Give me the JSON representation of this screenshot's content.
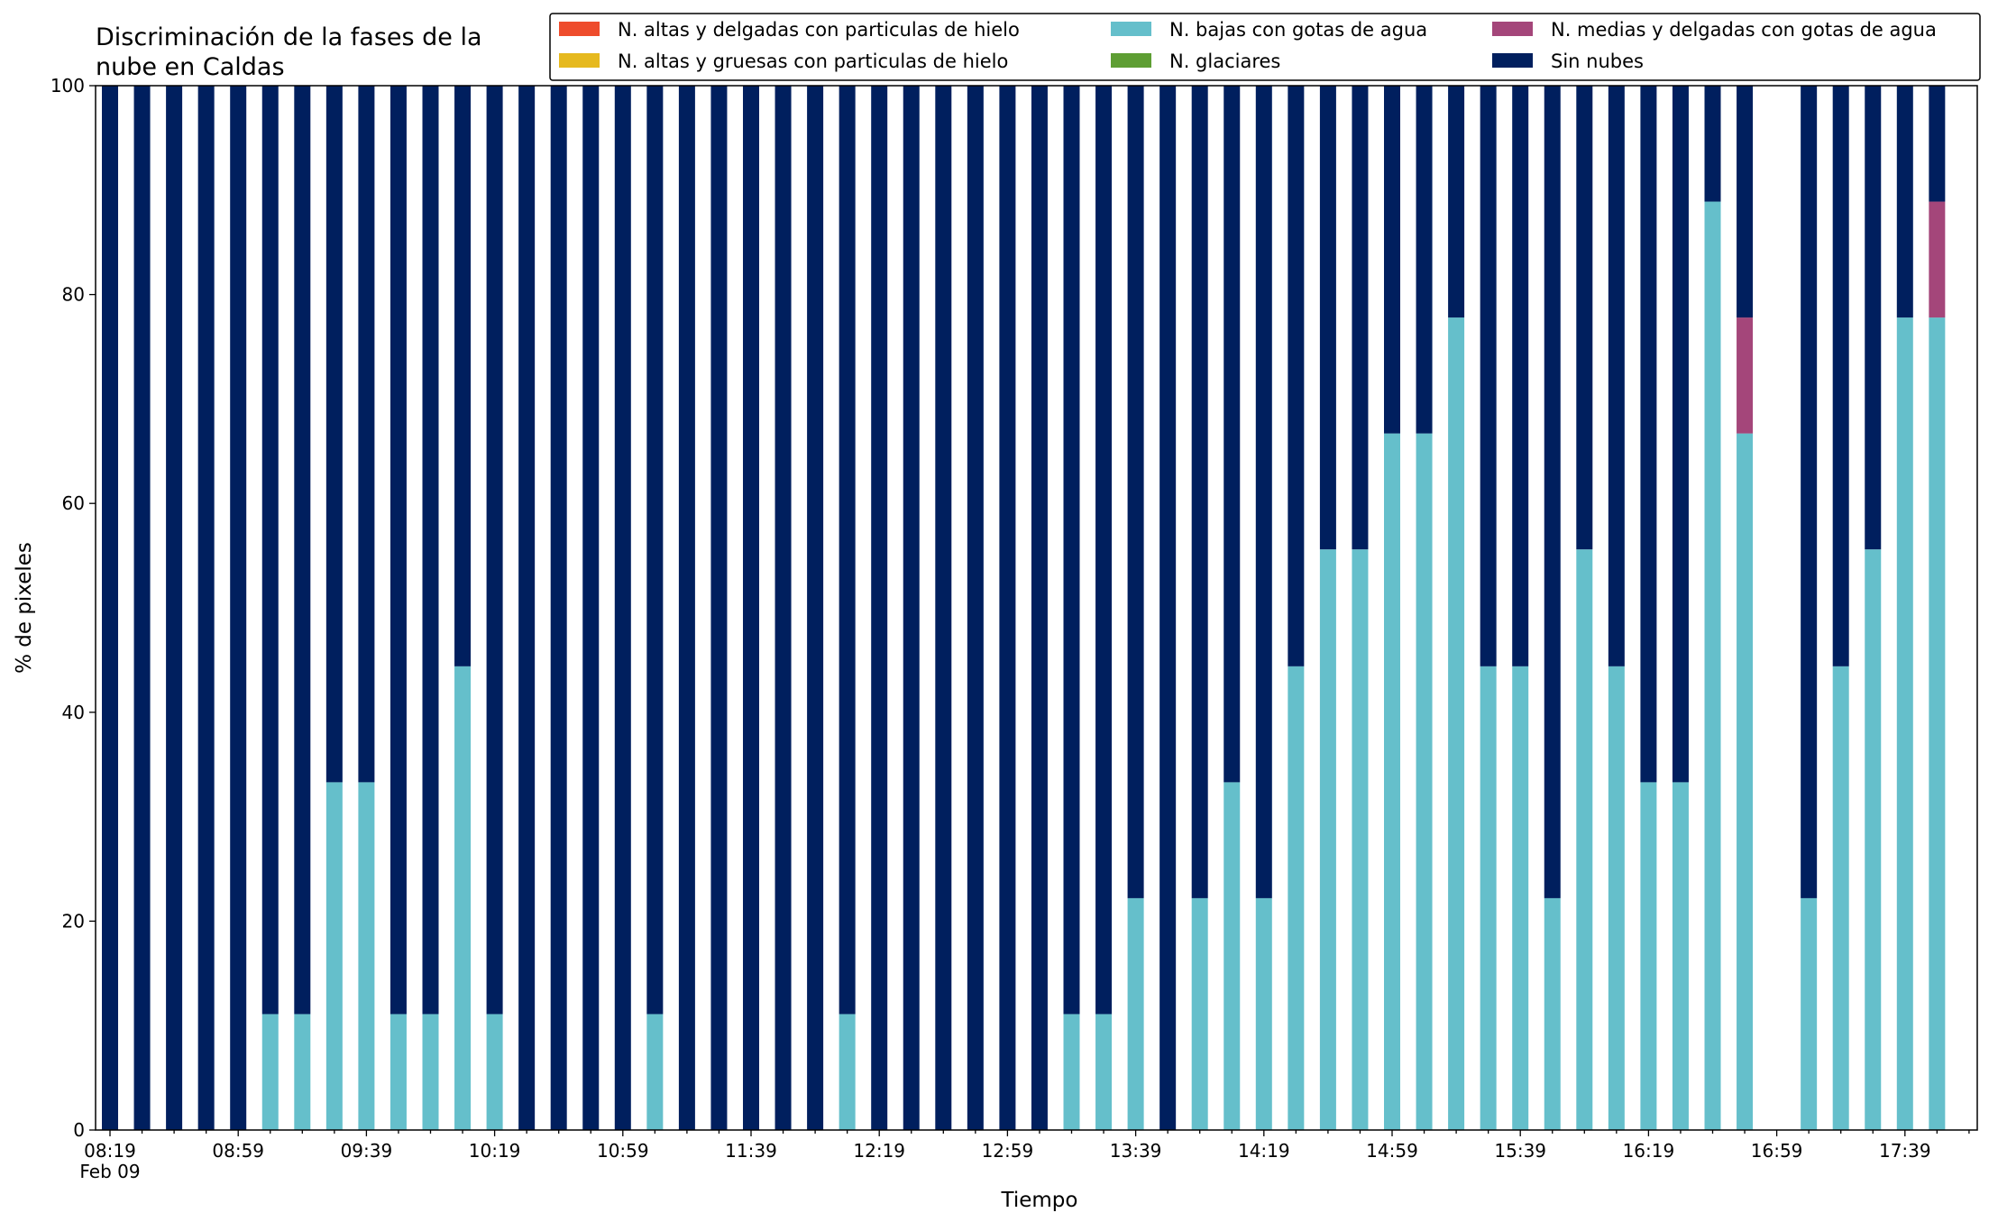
{
  "chart_data": {
    "type": "bar",
    "stacked": true,
    "title_lines": [
      "Discriminación de la fases de la",
      "nube en Caldas"
    ],
    "xlabel": "Tiempo",
    "ylabel": "% de pixeles",
    "ylim": [
      0,
      100
    ],
    "yticks": [
      0,
      20,
      40,
      60,
      80,
      100
    ],
    "date_label": "Feb 09",
    "grid": false,
    "legend_position": "top-right",
    "legend_columns": 3,
    "x": [
      "08:19",
      "08:29",
      "08:39",
      "08:49",
      "08:59",
      "09:09",
      "09:19",
      "09:29",
      "09:39",
      "09:49",
      "09:59",
      "10:09",
      "10:19",
      "10:29",
      "10:39",
      "10:49",
      "10:59",
      "11:09",
      "11:19",
      "11:29",
      "11:39",
      "11:49",
      "11:59",
      "12:09",
      "12:19",
      "12:29",
      "12:39",
      "12:49",
      "12:59",
      "13:09",
      "13:19",
      "13:29",
      "13:39",
      "13:49",
      "13:59",
      "14:09",
      "14:19",
      "14:29",
      "14:39",
      "14:49",
      "14:59",
      "15:09",
      "15:19",
      "15:29",
      "15:39",
      "15:49",
      "15:59",
      "16:09",
      "16:19",
      "16:29",
      "16:39",
      "16:49",
      "16:59",
      "17:09",
      "17:19",
      "17:29",
      "17:39",
      "17:49"
    ],
    "xticks_major": [
      "08:19",
      "08:59",
      "09:39",
      "10:19",
      "10:59",
      "11:39",
      "12:19",
      "12:59",
      "13:39",
      "14:19",
      "14:59",
      "15:39",
      "16:19",
      "16:59",
      "17:39"
    ],
    "series": [
      {
        "name": "N. altas y delgadas con particulas de hielo",
        "color": "#ee4c2c",
        "values": [
          0,
          0,
          0,
          0,
          0,
          0,
          0,
          0,
          0,
          0,
          0,
          0,
          0,
          0,
          0,
          0,
          0,
          0,
          0,
          0,
          0,
          0,
          0,
          0,
          0,
          0,
          0,
          0,
          0,
          0,
          0,
          0,
          0,
          0,
          0,
          0,
          0,
          0,
          0,
          0,
          0,
          0,
          0,
          0,
          0,
          0,
          0,
          0,
          0,
          0,
          0,
          0,
          0,
          0,
          0,
          0,
          0,
          0
        ]
      },
      {
        "name": "N. altas y gruesas con particulas de hielo",
        "color": "#e6b91e",
        "values": [
          0,
          0,
          0,
          0,
          0,
          0,
          0,
          0,
          0,
          0,
          0,
          0,
          0,
          0,
          0,
          0,
          0,
          0,
          0,
          0,
          0,
          0,
          0,
          0,
          0,
          0,
          0,
          0,
          0,
          0,
          0,
          0,
          0,
          0,
          0,
          0,
          0,
          0,
          0,
          0,
          0,
          0,
          0,
          0,
          0,
          0,
          0,
          0,
          0,
          0,
          0,
          0,
          0,
          0,
          0,
          0,
          0,
          0
        ]
      },
      {
        "name": "N. bajas con gotas de agua",
        "color": "#65bfcb",
        "values": [
          0,
          0,
          0,
          0,
          0,
          11.1,
          11.1,
          33.3,
          33.3,
          11.1,
          11.1,
          44.4,
          11.1,
          0,
          0,
          0,
          0,
          11.1,
          0,
          0,
          0,
          0,
          0,
          11.1,
          0,
          0,
          0,
          0,
          0,
          0,
          11.1,
          11.1,
          22.2,
          0,
          22.2,
          33.3,
          22.2,
          44.4,
          55.6,
          55.6,
          66.7,
          66.7,
          77.8,
          44.4,
          44.4,
          22.2,
          55.6,
          44.4,
          33.3,
          33.3,
          88.9,
          66.7,
          null,
          22.2,
          44.4,
          55.6,
          77.8,
          77.8
        ]
      },
      {
        "name": "N. glaciares",
        "color": "#5e9e33",
        "values": [
          0,
          0,
          0,
          0,
          0,
          0,
          0,
          0,
          0,
          0,
          0,
          0,
          0,
          0,
          0,
          0,
          0,
          0,
          0,
          0,
          0,
          0,
          0,
          0,
          0,
          0,
          0,
          0,
          0,
          0,
          0,
          0,
          0,
          0,
          0,
          0,
          0,
          0,
          0,
          0,
          0,
          0,
          0,
          0,
          0,
          0,
          0,
          0,
          0,
          0,
          0,
          0,
          0,
          0,
          0,
          0,
          0,
          0
        ]
      },
      {
        "name": "N. medias y delgadas con gotas de agua",
        "color": "#a4467a",
        "values": [
          0,
          0,
          0,
          0,
          0,
          0,
          0,
          0,
          0,
          0,
          0,
          0,
          0,
          0,
          0,
          0,
          0,
          0,
          0,
          0,
          0,
          0,
          0,
          0,
          0,
          0,
          0,
          0,
          0,
          0,
          0,
          0,
          0,
          0,
          0,
          0,
          0,
          0,
          0,
          0,
          0,
          0,
          0,
          0,
          0,
          0,
          0,
          0,
          0,
          0,
          0,
          11.1,
          null,
          0,
          0,
          0,
          0,
          11.1
        ]
      },
      {
        "name": "Sin nubes",
        "color": "#001f5e",
        "values": [
          100,
          100,
          100,
          100,
          100,
          88.9,
          88.9,
          66.7,
          66.7,
          88.9,
          88.9,
          55.6,
          88.9,
          100,
          100,
          100,
          100,
          88.9,
          100,
          100,
          100,
          100,
          100,
          88.9,
          100,
          100,
          100,
          100,
          100,
          100,
          88.9,
          88.9,
          77.8,
          100,
          77.8,
          66.7,
          77.8,
          55.6,
          44.4,
          44.4,
          33.3,
          33.3,
          22.2,
          55.6,
          55.6,
          77.8,
          44.4,
          55.6,
          66.7,
          66.7,
          11.1,
          22.2,
          null,
          77.8,
          55.6,
          44.4,
          22.2,
          11.1
        ]
      }
    ]
  }
}
